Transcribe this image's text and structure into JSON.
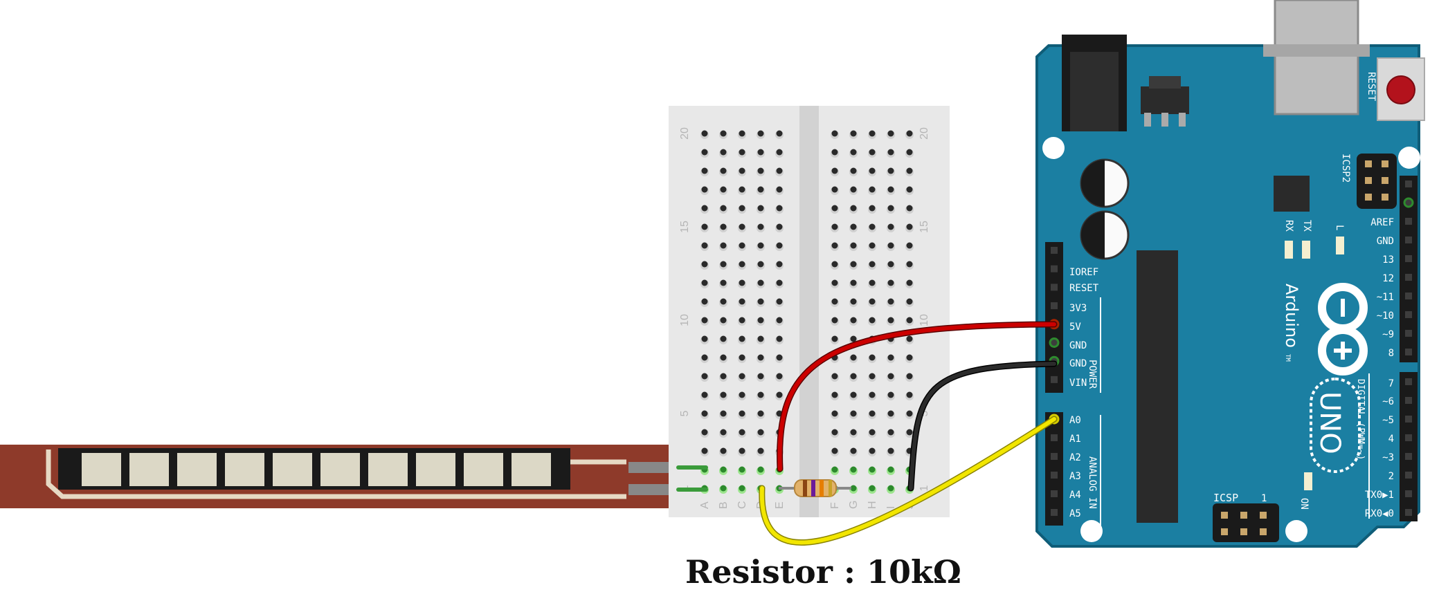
{
  "caption": "Resistor : 10kΩ",
  "breadboard": {
    "rows": 20,
    "left_columns": [
      "A",
      "B",
      "C",
      "D",
      "E"
    ],
    "right_columns": [
      "F",
      "G",
      "H",
      "I",
      "J"
    ],
    "row_number_labels": [
      "20",
      "15",
      "10",
      "5",
      "1"
    ]
  },
  "arduino": {
    "logo_text": "Arduino",
    "trademark": "TM",
    "model": "UNO",
    "reset_label": "RESET",
    "icsp2_label": "ICSP2",
    "icsp_label": "ICSP",
    "icsp_pin1": "1",
    "led_labels": [
      "TX",
      "RX",
      "L"
    ],
    "on_label": "ON",
    "power_header_labels": [
      "IOREF",
      "RESET",
      "3V3",
      "5V",
      "GND",
      "GND",
      "VIN"
    ],
    "power_section_label": "POWER",
    "analog_header_labels": [
      "A0",
      "A1",
      "A2",
      "A3",
      "A4",
      "A5"
    ],
    "analog_section_label": "ANALOG IN",
    "digital_top_labels": [
      "AREF",
      "GND",
      "13",
      "12",
      "~11",
      "~10",
      "~9",
      "8"
    ],
    "digital_bottom_labels": [
      "7",
      "~6",
      "~5",
      "4",
      "~3",
      "2",
      "TX0▶1",
      "RX0◀0"
    ],
    "digital_section_label": "DIGITAL (PWM=~)"
  },
  "wires": {
    "5v": "#cc0000",
    "gnd": "#1a1a1a",
    "a0": "#f2e600"
  },
  "colors": {
    "board": "#1b7fa2",
    "board_stroke": "#0f5d78",
    "sensor": "#8e3a2a",
    "breadboard": "#e8e8e8"
  }
}
